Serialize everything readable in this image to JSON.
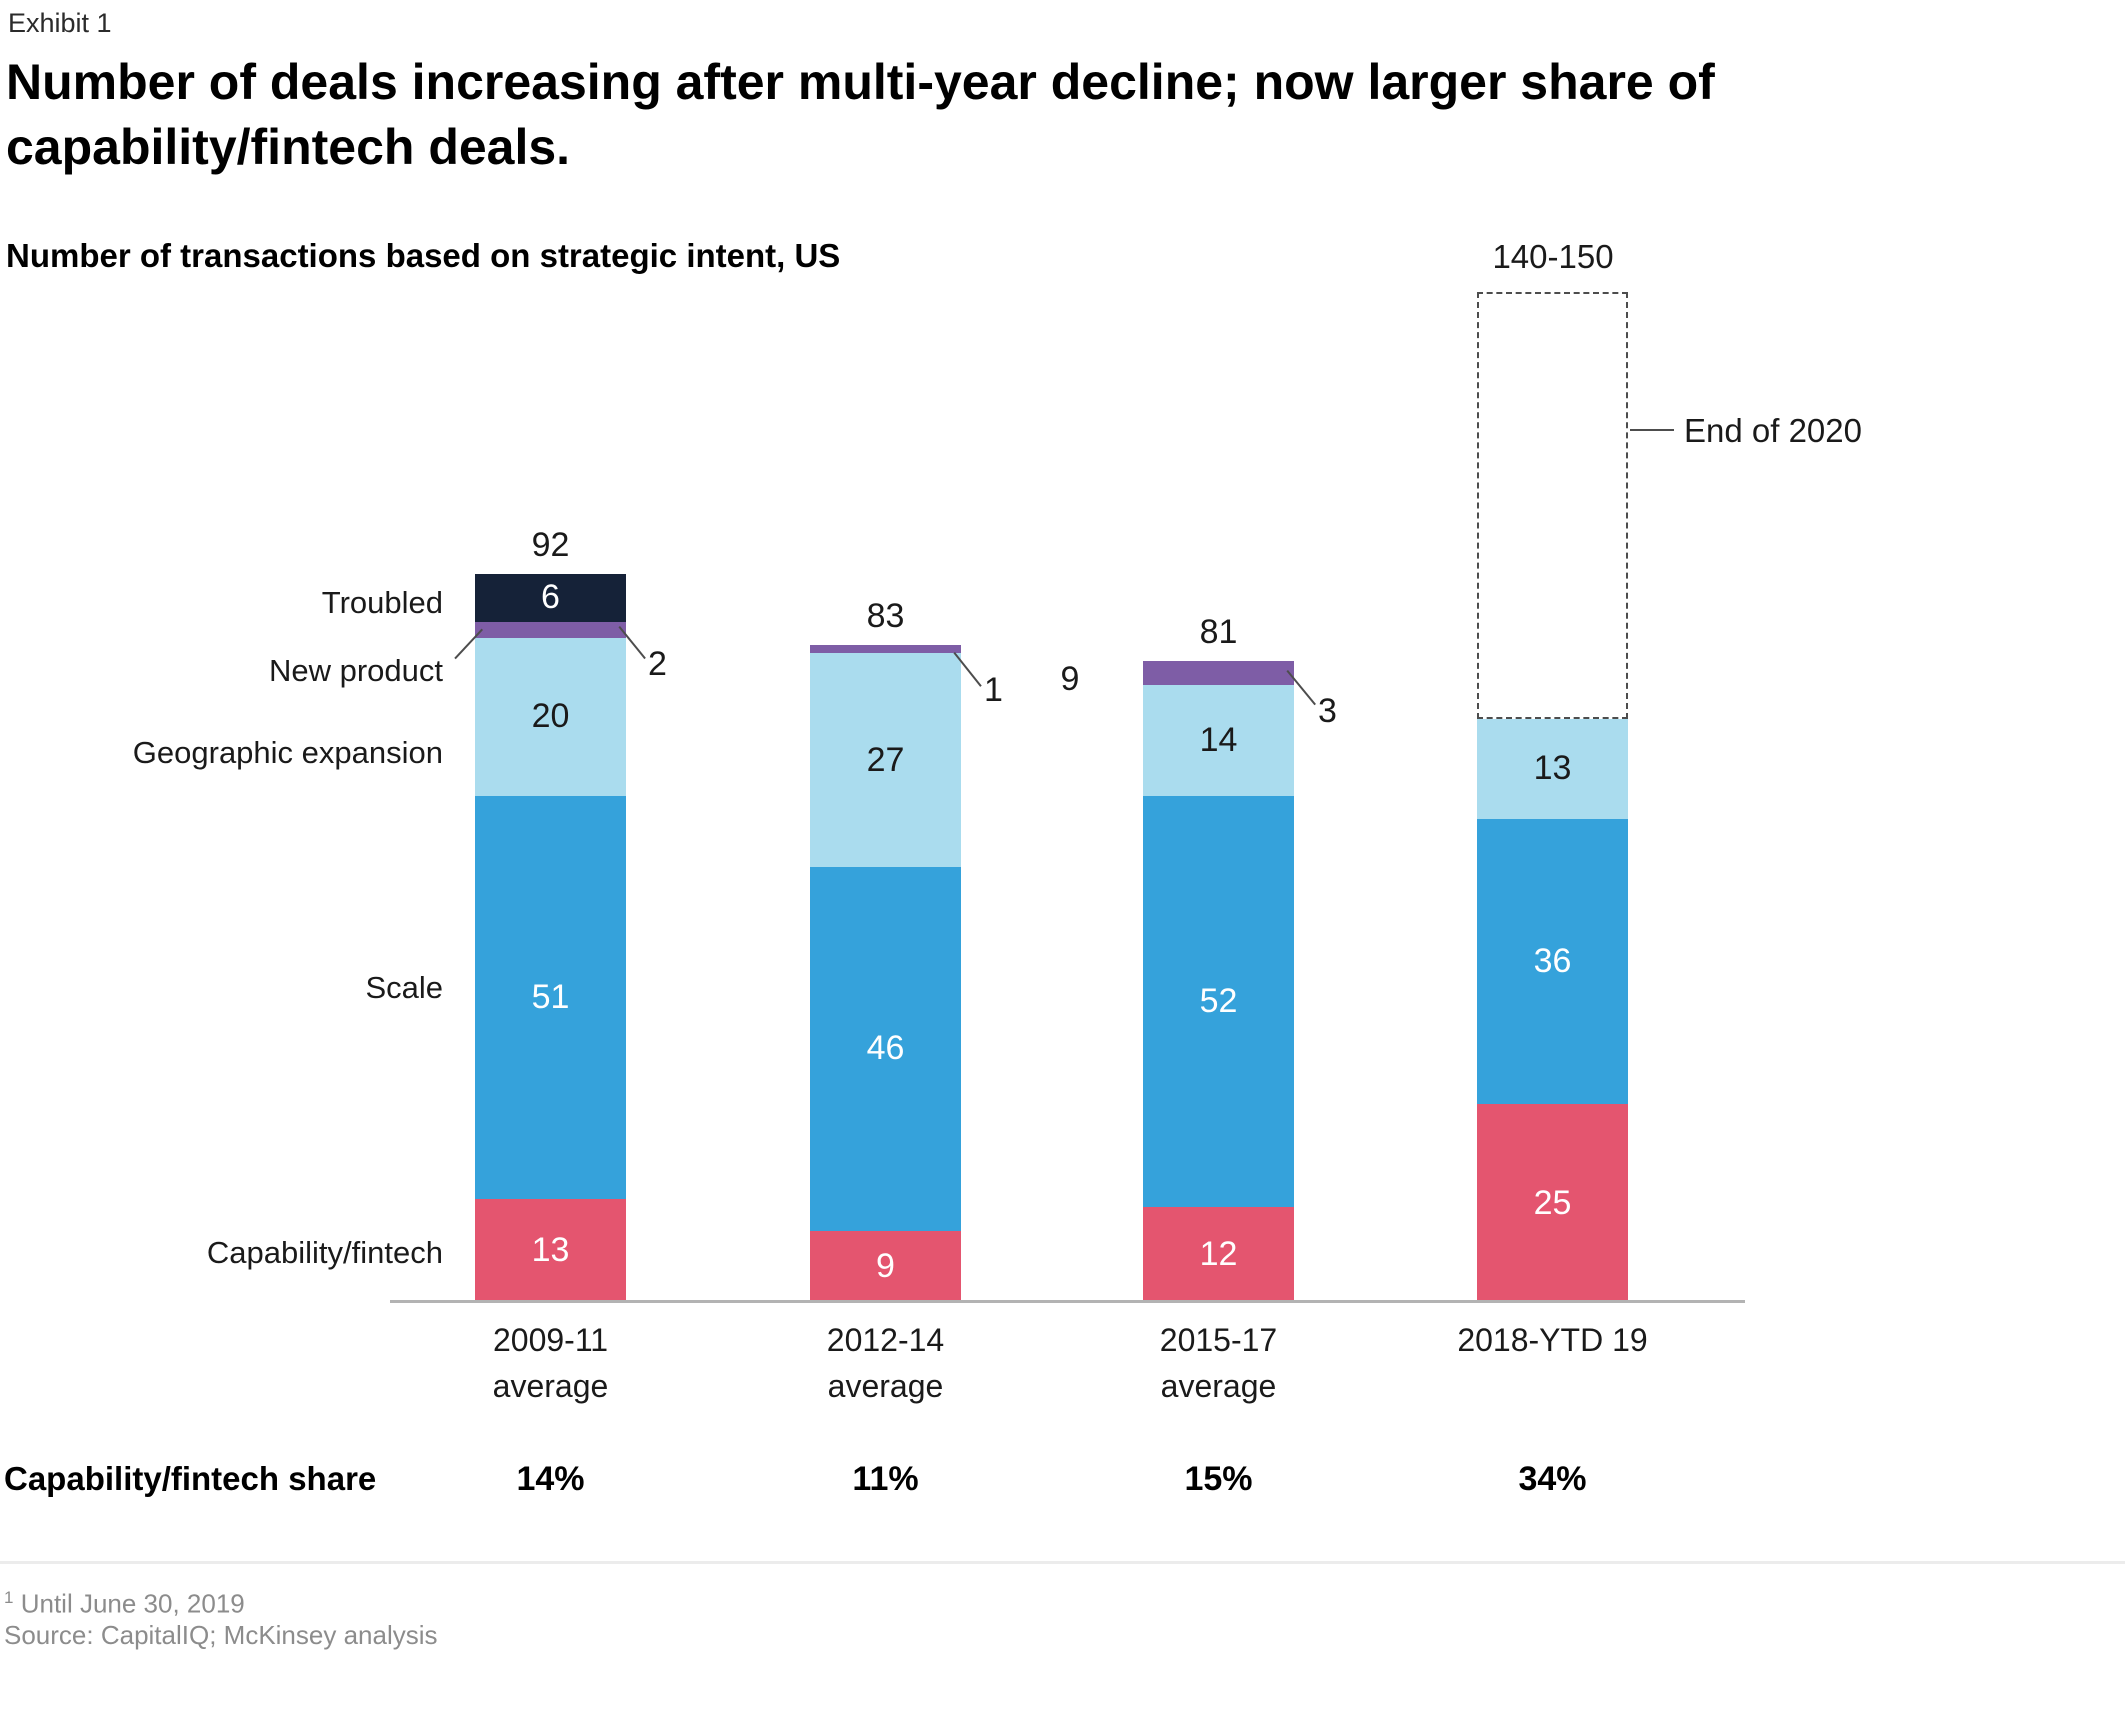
{
  "exhibit_label": "Exhibit 1",
  "title_line1": "Number of deals increasing after multi-year decline; now larger share of",
  "title_line2": "capability/fintech deals.",
  "subtitle": "Number of transactions based on strategic intent, US",
  "annotations": {
    "projection_range": "140-150",
    "projection_callout": "End of 2020",
    "floating_label": "9"
  },
  "share_row": {
    "label": "Capability/fintech share",
    "values": [
      "14%",
      "11%",
      "15%",
      "34%"
    ]
  },
  "footnotes": {
    "superscript": "1",
    "line1": "Until June 30, 2019",
    "line2": "Source: CapitalIQ; McKinsey analysis"
  },
  "colors": {
    "capability_fintech": "#e4556f",
    "scale": "#35a2db",
    "geographic_expansion": "#aadcee",
    "new_product": "#7e5da6",
    "troubled": "#152238",
    "axis": "#b3b3b3",
    "dashed_outline": "#4d4d4d",
    "footnote_gray": "#8c8c8c"
  },
  "chart_data": {
    "type": "bar",
    "stacked": true,
    "title": "Number of transactions based on strategic intent, US",
    "xlabel": "",
    "ylabel": "",
    "grid": false,
    "legend_position": "left of first bar",
    "categories_lines": [
      [
        "2009-11",
        "average"
      ],
      [
        "2012-14",
        "average"
      ],
      [
        "2015-17",
        "average"
      ],
      [
        "2018-YTD 19"
      ]
    ],
    "series": [
      {
        "name": "Capability/fintech",
        "color": "#e4556f",
        "label_color": "#ffffff",
        "values": [
          13,
          9,
          12,
          25
        ]
      },
      {
        "name": "Scale",
        "color": "#35a2db",
        "label_color": "#ffffff",
        "values": [
          51,
          46,
          52,
          36
        ]
      },
      {
        "name": "Geographic expansion",
        "color": "#aadcee",
        "label_color": "#1a1a1a",
        "values": [
          20,
          27,
          14,
          13
        ]
      },
      {
        "name": "New product",
        "color": "#7e5da6",
        "label_outside": true,
        "values": [
          2,
          1,
          3,
          null
        ]
      },
      {
        "name": "Troubled",
        "color": "#152238",
        "label_color": "#ffffff",
        "values": [
          6,
          null,
          null,
          null
        ]
      }
    ],
    "totals": [
      92,
      83,
      81,
      null
    ],
    "projection": {
      "category_index": 3,
      "range_label": "140-150",
      "annotation": "End of 2020"
    },
    "share_of_capability_fintech": [
      "14%",
      "11%",
      "15%",
      "34%"
    ]
  }
}
